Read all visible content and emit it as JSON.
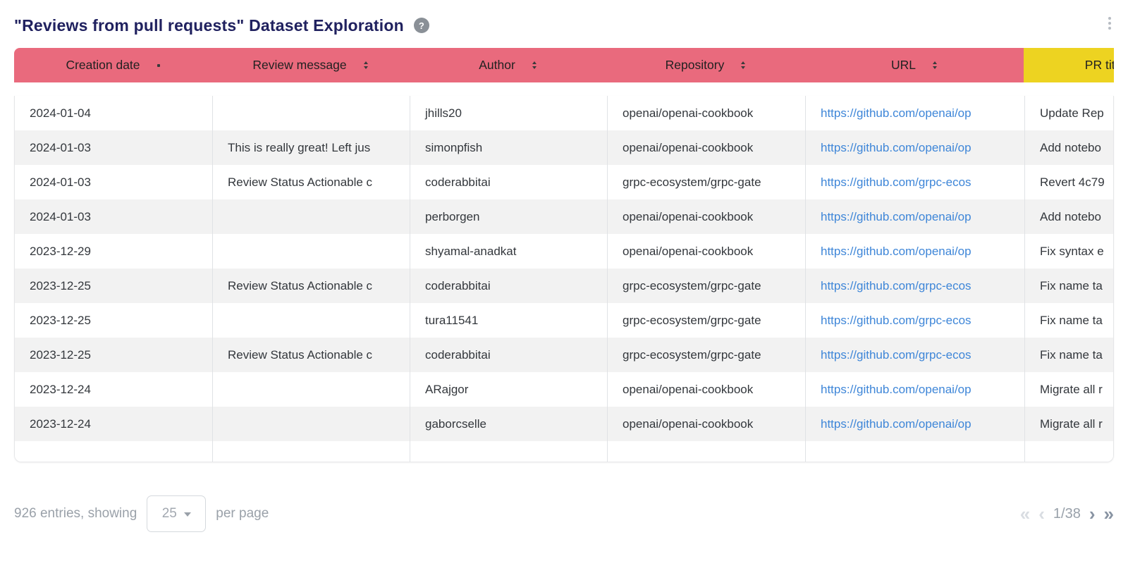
{
  "header": {
    "title": "\"Reviews from pull requests\" Dataset Exploration",
    "help_glyph": "?"
  },
  "colors": {
    "header_pink": "#e96a7d",
    "highlight_yellow": "#edd321",
    "link_blue": "#3e86d8",
    "title_navy": "#20215f"
  },
  "table": {
    "columns": [
      {
        "label": "Creation date"
      },
      {
        "label": "Review message"
      },
      {
        "label": "Author"
      },
      {
        "label": "Repository"
      },
      {
        "label": "URL"
      },
      {
        "label": "PR title"
      }
    ],
    "rows": [
      {
        "creation_date": "2024-01-04",
        "review_message": "",
        "author": "jhills20",
        "repository": "openai/openai-cookbook",
        "url": "https://github.com/openai/op",
        "pr_title": "Update Rep"
      },
      {
        "creation_date": "2024-01-03",
        "review_message": "This is really great! Left jus",
        "author": "simonpfish",
        "repository": "openai/openai-cookbook",
        "url": "https://github.com/openai/op",
        "pr_title": "Add notebo"
      },
      {
        "creation_date": "2024-01-03",
        "review_message": "Review Status Actionable c",
        "author": "coderabbitai",
        "repository": "grpc-ecosystem/grpc-gate",
        "url": "https://github.com/grpc-ecos",
        "pr_title": "Revert 4c79"
      },
      {
        "creation_date": "2024-01-03",
        "review_message": "",
        "author": "perborgen",
        "repository": "openai/openai-cookbook",
        "url": "https://github.com/openai/op",
        "pr_title": "Add notebo"
      },
      {
        "creation_date": "2023-12-29",
        "review_message": "",
        "author": "shyamal-anadkat",
        "repository": "openai/openai-cookbook",
        "url": "https://github.com/openai/op",
        "pr_title": "Fix syntax e"
      },
      {
        "creation_date": "2023-12-25",
        "review_message": "Review Status Actionable c",
        "author": "coderabbitai",
        "repository": "grpc-ecosystem/grpc-gate",
        "url": "https://github.com/grpc-ecos",
        "pr_title": "Fix name ta"
      },
      {
        "creation_date": "2023-12-25",
        "review_message": "",
        "author": "tura11541",
        "repository": "grpc-ecosystem/grpc-gate",
        "url": "https://github.com/grpc-ecos",
        "pr_title": "Fix name ta"
      },
      {
        "creation_date": "2023-12-25",
        "review_message": "Review Status Actionable c",
        "author": "coderabbitai",
        "repository": "grpc-ecosystem/grpc-gate",
        "url": "https://github.com/grpc-ecos",
        "pr_title": "Fix name ta"
      },
      {
        "creation_date": "2023-12-24",
        "review_message": "",
        "author": "ARajgor",
        "repository": "openai/openai-cookbook",
        "url": "https://github.com/openai/op",
        "pr_title": "Migrate all r"
      },
      {
        "creation_date": "2023-12-24",
        "review_message": "",
        "author": "gaborcselle",
        "repository": "openai/openai-cookbook",
        "url": "https://github.com/openai/op",
        "pr_title": "Migrate all r"
      }
    ]
  },
  "footer": {
    "entries_text": "926 entries, showing",
    "page_size": "25",
    "per_page_text": "per page",
    "page_indicator": "1/38",
    "pagination": {
      "first": "«",
      "prev": "‹",
      "next": "›",
      "last": "»"
    }
  }
}
